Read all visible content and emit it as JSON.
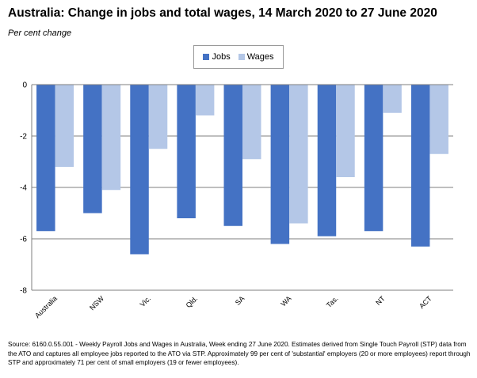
{
  "title": "Australia:  Change in jobs and total wages, 14 March 2020 to 27 June 2020",
  "subtitle": "Per cent change",
  "legend": {
    "jobs": "Jobs",
    "wages": "Wages"
  },
  "colors": {
    "jobs": "#4472c4",
    "wages": "#b4c7e7",
    "grid": "#7f7f7f"
  },
  "source": "Source: 6160.0.55.001 - Weekly Payroll Jobs and Wages in Australia, Week ending 27 June 2020.  Estimates derived from Single Touch Payroll (STP) data from the ATO and captures all employee jobs reported to the ATO via STP.  Approximately 99 per cent of 'substantial' employers (20 or more employees) report through STP and approximately 71 per cent of small employers (19 or fewer employees).",
  "chart_data": {
    "type": "bar",
    "title": "Australia:  Change in jobs and total wages, 14 March 2020 to 27 June 2020",
    "ylabel": "Per cent change",
    "categories": [
      "Australia",
      "NSW",
      "Vic.",
      "Qld.",
      "SA",
      "WA",
      "Tas.",
      "NT",
      "ACT"
    ],
    "series": [
      {
        "name": "Jobs",
        "values": [
          -5.7,
          -5.0,
          -6.6,
          -5.2,
          -5.5,
          -6.2,
          -5.9,
          -5.7,
          -6.3
        ]
      },
      {
        "name": "Wages",
        "values": [
          -3.2,
          -4.1,
          -2.5,
          -1.2,
          -2.9,
          -5.4,
          -3.6,
          -1.1,
          -2.7
        ]
      }
    ],
    "ylim": [
      -8,
      0
    ],
    "yticks": [
      0,
      -2,
      -4,
      -6,
      -8
    ],
    "grid": true,
    "legend_position": "top-center"
  }
}
